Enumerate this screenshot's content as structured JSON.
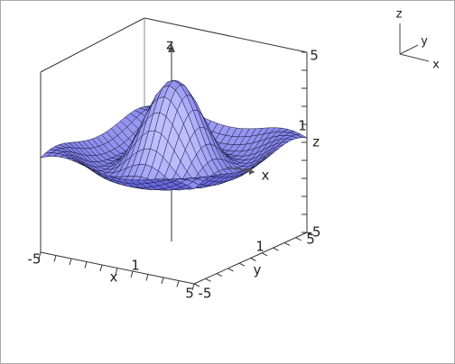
{
  "graph": {
    "z_axis_label": "z",
    "x_axis_label": "x",
    "box": {
      "z_max": "5",
      "z_one": "1",
      "z_side_label": "z",
      "x_min": "-5",
      "x_label": "x",
      "x_one": "1",
      "x_max": "5",
      "y_min": "-5",
      "y_label": "y",
      "y_one": "1",
      "y_max": "5",
      "y_max_right": "-5"
    },
    "orientation": {
      "z": "z",
      "y": "y",
      "x": "x"
    }
  }
}
